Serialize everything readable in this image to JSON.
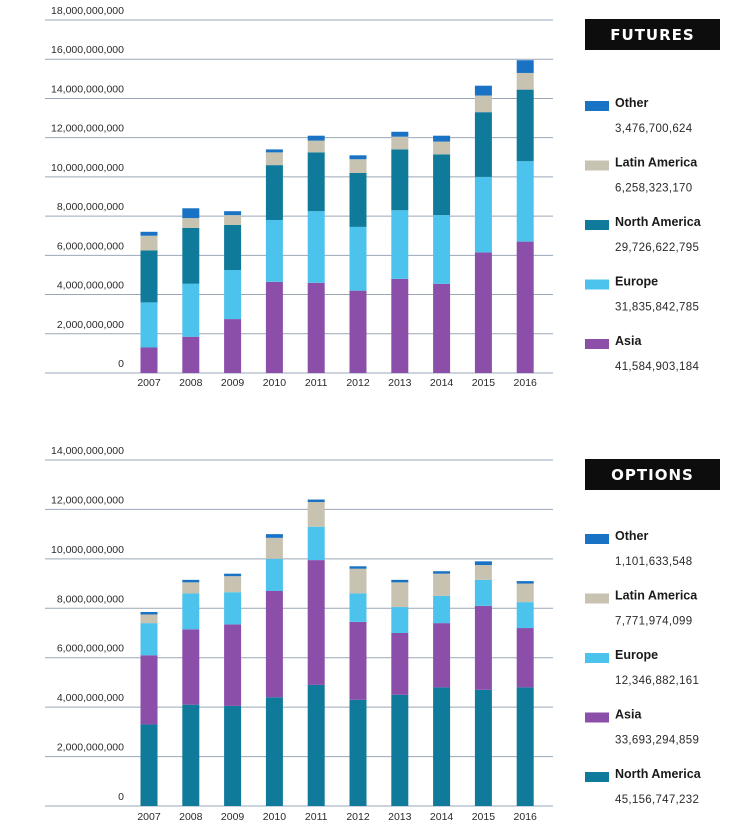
{
  "chart_data": [
    {
      "type": "bar",
      "stacked": true,
      "title": "FUTURES",
      "categories": [
        "2007",
        "2008",
        "2009",
        "2010",
        "2011",
        "2012",
        "2013",
        "2014",
        "2015",
        "2016"
      ],
      "ylim": [
        0,
        18000000000
      ],
      "yticks": [
        "18,000,000,000",
        "16,000,000,000",
        "14,000,000,000",
        "12,000,000,000",
        "10,000,000,000",
        "8,000,000,000",
        "6,000,000,000",
        "4,000,000,000",
        "2,000,000,000",
        "0"
      ],
      "yticks_values": [
        18000000000,
        16000000000,
        14000000000,
        12000000000,
        10000000000,
        8000000000,
        6000000000,
        4000000000,
        2000000000,
        0
      ],
      "series": [
        {
          "name": "Asia",
          "color": "#8b4faa",
          "values": [
            1300000000,
            1850000000,
            2750000000,
            4650000000,
            4600000000,
            4200000000,
            4800000000,
            4550000000,
            6150000000,
            6700000000
          ]
        },
        {
          "name": "Europe",
          "color": "#4cc3ec",
          "values": [
            2300000000,
            2700000000,
            2500000000,
            3150000000,
            3650000000,
            3250000000,
            3500000000,
            3500000000,
            3850000000,
            4100000000
          ]
        },
        {
          "name": "North America",
          "color": "#0f7a9a",
          "values": [
            2650000000,
            2850000000,
            2300000000,
            2800000000,
            3000000000,
            2750000000,
            3100000000,
            3100000000,
            3300000000,
            3650000000
          ]
        },
        {
          "name": "Latin America",
          "color": "#c8c2b0",
          "values": [
            750000000,
            500000000,
            500000000,
            650000000,
            600000000,
            700000000,
            650000000,
            650000000,
            850000000,
            850000000
          ]
        },
        {
          "name": "Other",
          "color": "#1a72c4",
          "values": [
            200000000,
            500000000,
            200000000,
            150000000,
            250000000,
            200000000,
            250000000,
            300000000,
            500000000,
            650000000
          ]
        }
      ],
      "legend": [
        {
          "name": "Other",
          "value": "3,476,700,624",
          "color": "#1a72c4"
        },
        {
          "name": "Latin America",
          "value": "6,258,323,170",
          "color": "#c8c2b0"
        },
        {
          "name": "North America",
          "value": "29,726,622,795",
          "color": "#0f7a9a"
        },
        {
          "name": "Europe",
          "value": "31,835,842,785",
          "color": "#4cc3ec"
        },
        {
          "name": "Asia",
          "value": "41,584,903,184",
          "color": "#8b4faa"
        }
      ]
    },
    {
      "type": "bar",
      "stacked": true,
      "title": "OPTIONS",
      "categories": [
        "2007",
        "2008",
        "2009",
        "2010",
        "2011",
        "2012",
        "2013",
        "2014",
        "2015",
        "2016"
      ],
      "ylim": [
        0,
        14000000000
      ],
      "yticks": [
        "14,000,000,000",
        "12,000,000,000",
        "10,000,000,000",
        "8,000,000,000",
        "6,000,000,000",
        "4,000,000,000",
        "2,000,000,000",
        "0"
      ],
      "yticks_values": [
        14000000000,
        12000000000,
        10000000000,
        8000000000,
        6000000000,
        4000000000,
        2000000000,
        0
      ],
      "series": [
        {
          "name": "North America",
          "color": "#0f7a9a",
          "values": [
            3300000000,
            4100000000,
            4050000000,
            4400000000,
            4900000000,
            4300000000,
            4500000000,
            4800000000,
            4700000000,
            4800000000
          ]
        },
        {
          "name": "Asia",
          "color": "#8b4faa",
          "values": [
            2800000000,
            3050000000,
            3300000000,
            4300000000,
            5050000000,
            3150000000,
            2500000000,
            2600000000,
            3400000000,
            2400000000
          ]
        },
        {
          "name": "Europe",
          "color": "#4cc3ec",
          "values": [
            1300000000,
            1450000000,
            1300000000,
            1300000000,
            1350000000,
            1150000000,
            1050000000,
            1100000000,
            1050000000,
            1050000000
          ]
        },
        {
          "name": "Latin America",
          "color": "#c8c2b0",
          "values": [
            350000000,
            450000000,
            650000000,
            850000000,
            1000000000,
            1000000000,
            1000000000,
            900000000,
            600000000,
            750000000
          ]
        },
        {
          "name": "Other",
          "color": "#1a72c4",
          "values": [
            100000000,
            100000000,
            100000000,
            150000000,
            100000000,
            100000000,
            100000000,
            100000000,
            150000000,
            100000000
          ]
        }
      ],
      "legend": [
        {
          "name": "Other",
          "value": "1,101,633,548",
          "color": "#1a72c4"
        },
        {
          "name": "Latin America",
          "value": "7,771,974,099",
          "color": "#c8c2b0"
        },
        {
          "name": "Europe",
          "value": "12,346,882,161",
          "color": "#4cc3ec"
        },
        {
          "name": "Asia",
          "value": "33,693,294,859",
          "color": "#8b4faa"
        },
        {
          "name": "North America",
          "value": "45,156,747,232",
          "color": "#0f7a9a"
        }
      ]
    }
  ]
}
